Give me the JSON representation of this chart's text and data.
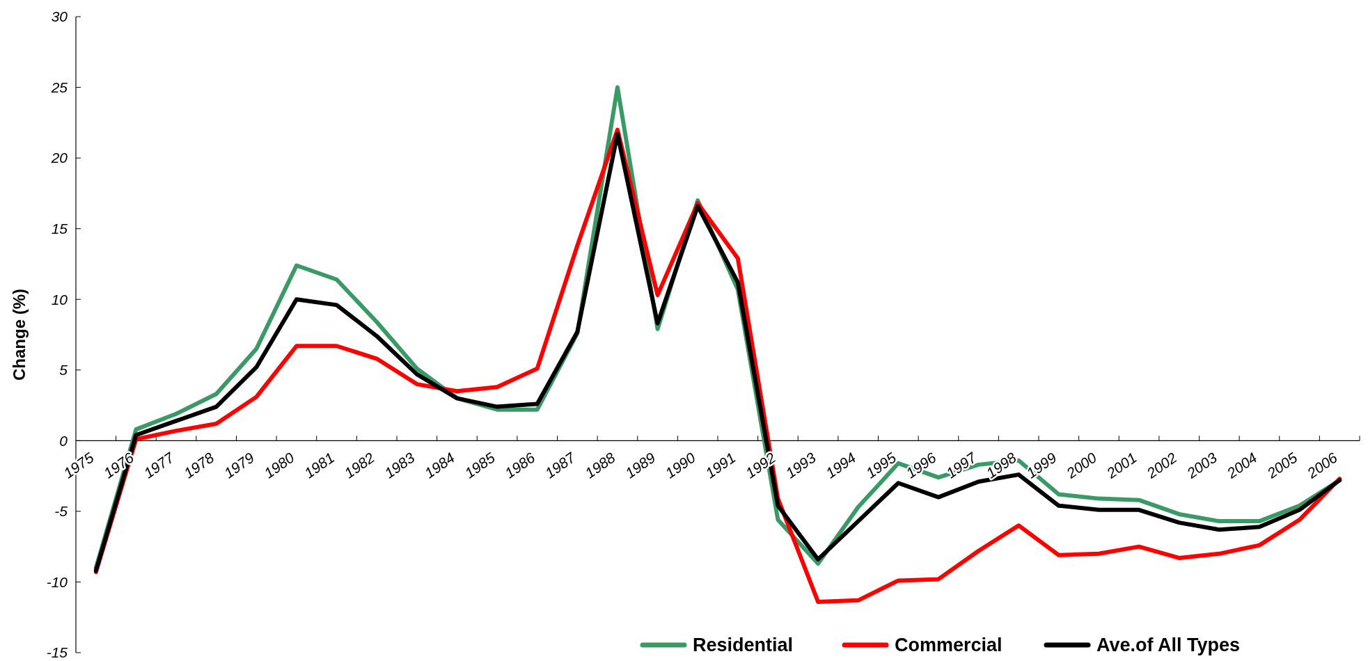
{
  "chart_data": {
    "type": "line",
    "ylabel": "Change (%)",
    "categories": [
      "1975",
      "1976",
      "1977",
      "1978",
      "1979",
      "1980",
      "1981",
      "1982",
      "1983",
      "1984",
      "1985",
      "1986",
      "1987",
      "1988",
      "1989",
      "1990",
      "1991",
      "1992",
      "1993",
      "1994",
      "1995",
      "1996",
      "1997",
      "1998",
      "1999",
      "2000",
      "2001",
      "2002",
      "2003",
      "2004",
      "2005",
      "2006"
    ],
    "series": [
      {
        "name": "Residential",
        "color": "#3a9a66",
        "values": [
          -9.0,
          0.8,
          1.9,
          3.3,
          6.5,
          12.4,
          11.4,
          8.4,
          5.1,
          3.0,
          2.2,
          2.2,
          7.6,
          25.0,
          7.9,
          17.0,
          10.7,
          -5.6,
          -8.7,
          -4.7,
          -1.6,
          -2.6,
          -1.7,
          -1.4,
          -3.8,
          -4.1,
          -4.2,
          -5.2,
          -5.7,
          -5.7,
          -4.6,
          -2.8
        ]
      },
      {
        "name": "Commercial",
        "color": "#ff0000",
        "values": [
          -9.3,
          0.1,
          0.7,
          1.2,
          3.1,
          6.7,
          6.7,
          5.8,
          4.0,
          3.5,
          3.8,
          5.1,
          13.8,
          22.0,
          10.3,
          16.8,
          12.9,
          -4.1,
          -11.4,
          -11.3,
          -9.9,
          -9.8,
          -7.8,
          -6.0,
          -8.1,
          -8.0,
          -7.5,
          -8.3,
          -8.0,
          -7.4,
          -5.6,
          -2.7
        ]
      },
      {
        "name": "Ave.of All Types",
        "color": "#000000",
        "values": [
          -9.2,
          0.4,
          1.4,
          2.4,
          5.2,
          10.0,
          9.6,
          7.4,
          4.7,
          3.0,
          2.4,
          2.6,
          7.7,
          21.7,
          8.3,
          16.6,
          11.2,
          -4.6,
          -8.4,
          -5.7,
          -3.0,
          -4.0,
          -2.9,
          -2.4,
          -4.6,
          -4.9,
          -4.9,
          -5.8,
          -6.3,
          -6.1,
          -4.9,
          -2.8
        ]
      }
    ],
    "ylim": [
      -15,
      30
    ],
    "yticks": [
      -15,
      -10,
      -5,
      0,
      5,
      10,
      15,
      20,
      25,
      30
    ],
    "grid": false,
    "legend": "bottom right",
    "marker": "none",
    "line_style": "solid"
  }
}
